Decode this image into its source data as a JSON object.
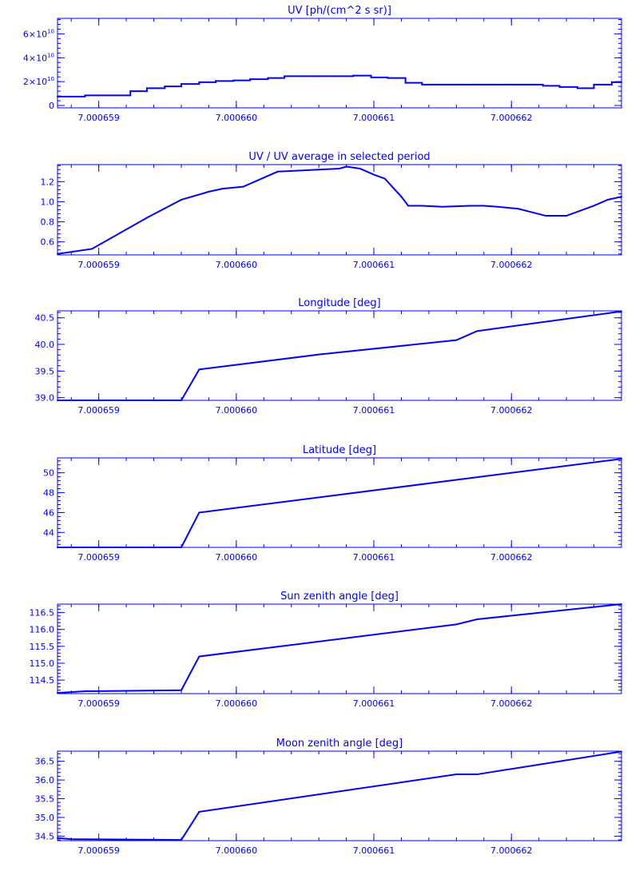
{
  "style": {
    "color": "#0000ff"
  },
  "chart_data": [
    {
      "type": "line",
      "title": "UV [ph/(cm^2 s sr)]",
      "xlim": [
        7.0006587,
        7.0006628
      ],
      "ylim": [
        -2000000000.0,
        73000000000.0
      ],
      "xticks": [
        7.000659,
        7.00066,
        7.000661,
        7.000662
      ],
      "xtick_labels": [
        "7.000659",
        "7.000660",
        "7.000661",
        "7.000662"
      ],
      "yticks": [
        0,
        20000000000.0,
        40000000000.0,
        60000000000.0
      ],
      "ytick_labels": [
        {
          "mant": "0",
          "exp": ""
        },
        {
          "mant": "2×10",
          "exp": "10"
        },
        {
          "mant": "4×10",
          "exp": "10"
        },
        {
          "mant": "6×10",
          "exp": "10"
        }
      ],
      "step": true,
      "x": [
        7.0006587,
        7.0006589,
        7.00065923,
        7.00065935,
        7.00065948,
        7.0006596,
        7.00065973,
        7.00065985,
        7.00065998,
        7.0006601,
        7.00066023,
        7.00066035,
        7.00066048,
        7.0006606,
        7.00066073,
        7.00066085,
        7.00066098,
        7.0006611,
        7.00066123,
        7.00066135,
        7.00066148,
        7.0006616,
        7.00066173,
        7.00066185,
        7.00066198,
        7.0006621,
        7.00066223,
        7.00066235,
        7.00066248,
        7.0006626,
        7.00066273,
        7.0006628
      ],
      "y": [
        7500000000.0,
        8500000000.0,
        12000000000.0,
        14500000000.0,
        16000000000.0,
        18000000000.0,
        19500000000.0,
        20500000000.0,
        21000000000.0,
        22000000000.0,
        23000000000.0,
        24500000000.0,
        24500000000.0,
        24500000000.0,
        24500000000.0,
        25000000000.0,
        23500000000.0,
        23000000000.0,
        19000000000.0,
        17500000000.0,
        17500000000.0,
        17500000000.0,
        17500000000.0,
        17500000000.0,
        17500000000.0,
        17500000000.0,
        16500000000.0,
        15500000000.0,
        14500000000.0,
        17500000000.0,
        19500000000.0,
        19500000000.0
      ]
    },
    {
      "type": "line",
      "title": "UV / UV average in selected period",
      "xlim": [
        7.0006587,
        7.0006628
      ],
      "ylim": [
        0.47,
        1.37
      ],
      "xticks": [
        7.000659,
        7.00066,
        7.000661,
        7.000662
      ],
      "xtick_labels": [
        "7.000659",
        "7.000660",
        "7.000661",
        "7.000662"
      ],
      "yticks": [
        0.6,
        0.8,
        1.0,
        1.2
      ],
      "ytick_labels": [
        "0.6",
        "0.8",
        "1.0",
        "1.2"
      ],
      "x": [
        7.0006587,
        7.00065895,
        7.00065935,
        7.0006596,
        7.0006598,
        7.0006599,
        7.00066005,
        7.0006603,
        7.00066045,
        7.0006606,
        7.00066075,
        7.0006608,
        7.0006609,
        7.000661,
        7.00066108,
        7.0006612,
        7.00066125,
        7.00066135,
        7.0006615,
        7.0006617,
        7.0006618,
        7.0006619,
        7.00066205,
        7.00066225,
        7.0006624,
        7.0006626,
        7.0006627,
        7.0006628
      ],
      "y": [
        0.48,
        0.53,
        0.84,
        1.02,
        1.1,
        1.13,
        1.15,
        1.3,
        1.31,
        1.32,
        1.33,
        1.35,
        1.33,
        1.27,
        1.23,
        1.05,
        0.96,
        0.96,
        0.95,
        0.96,
        0.96,
        0.95,
        0.93,
        0.86,
        0.86,
        0.96,
        1.02,
        1.05
      ]
    },
    {
      "type": "line",
      "title": "Longitude [deg]",
      "xlim": [
        7.0006587,
        7.0006628
      ],
      "ylim": [
        38.95,
        40.63
      ],
      "xticks": [
        7.000659,
        7.00066,
        7.000661,
        7.000662
      ],
      "xtick_labels": [
        "7.000659",
        "7.000660",
        "7.000661",
        "7.000662"
      ],
      "yticks": [
        39.0,
        39.5,
        40.0,
        40.5
      ],
      "ytick_labels": [
        "39.0",
        "39.5",
        "40.0",
        "40.5"
      ],
      "x": [
        7.0006587,
        7.0006596,
        7.00065973,
        7.0006606,
        7.0006616,
        7.00066175,
        7.0006628
      ],
      "y": [
        38.95,
        38.95,
        39.53,
        39.81,
        40.08,
        40.25,
        40.62
      ]
    },
    {
      "type": "line",
      "title": "Latitude [deg]",
      "xlim": [
        7.0006587,
        7.0006628
      ],
      "ylim": [
        42.5,
        51.5
      ],
      "xticks": [
        7.000659,
        7.00066,
        7.000661,
        7.000662
      ],
      "xtick_labels": [
        "7.000659",
        "7.000660",
        "7.000661",
        "7.000662"
      ],
      "yticks": [
        44,
        46,
        48,
        50
      ],
      "ytick_labels": [
        "44",
        "46",
        "48",
        "50"
      ],
      "x": [
        7.0006587,
        7.0006596,
        7.00065973,
        7.0006628
      ],
      "y": [
        42.5,
        42.5,
        46.0,
        51.4
      ]
    },
    {
      "type": "line",
      "title": "Sun zenith angle [deg]",
      "xlim": [
        7.0006587,
        7.0006628
      ],
      "ylim": [
        114.1,
        116.75
      ],
      "xticks": [
        7.000659,
        7.00066,
        7.000661,
        7.000662
      ],
      "xtick_labels": [
        "7.000659",
        "7.000660",
        "7.000661",
        "7.000662"
      ],
      "yticks": [
        114.5,
        115.0,
        115.5,
        116.0,
        116.5
      ],
      "ytick_labels": [
        "114.5",
        "115.0",
        "115.5",
        "116.0",
        "116.5"
      ],
      "x": [
        7.0006587,
        7.0006589,
        7.0006596,
        7.00065973,
        7.0006616,
        7.00066175,
        7.0006628
      ],
      "y": [
        114.12,
        114.17,
        114.2,
        115.2,
        116.15,
        116.3,
        116.75
      ]
    },
    {
      "type": "line",
      "title": "Moon zenith angle [deg]",
      "xlim": [
        7.0006587,
        7.0006628
      ],
      "ylim": [
        34.38,
        36.77
      ],
      "xticks": [
        7.000659,
        7.00066,
        7.000661,
        7.000662
      ],
      "xtick_labels": [
        "7.000659",
        "7.000660",
        "7.000661",
        "7.000662"
      ],
      "yticks": [
        34.5,
        35.0,
        35.5,
        36.0,
        36.5
      ],
      "ytick_labels": [
        "34.5",
        "35.0",
        "35.5",
        "36.0",
        "36.5"
      ],
      "x": [
        7.0006587,
        7.0006588,
        7.0006596,
        7.00065973,
        7.0006616,
        7.00066175,
        7.0006628
      ],
      "y": [
        34.45,
        34.42,
        34.4,
        35.15,
        36.15,
        36.15,
        36.76
      ]
    }
  ]
}
